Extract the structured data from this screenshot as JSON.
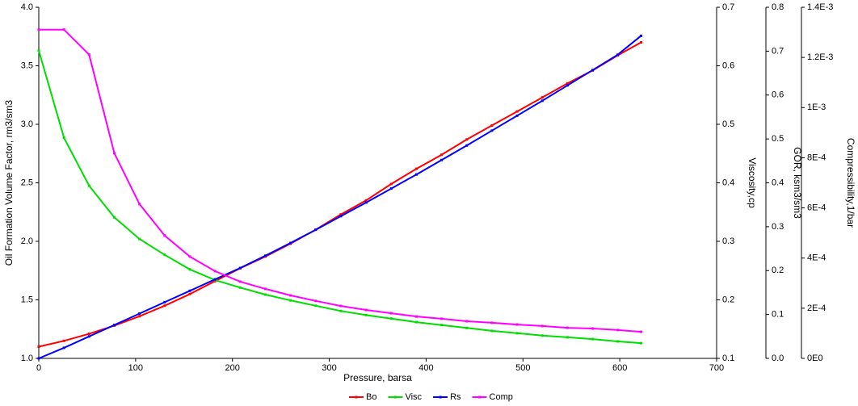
{
  "chart_data": {
    "type": "line",
    "xlabel": "Pressure, barsa",
    "ylabel": "Oil Formation Volume Factor, rm3/sm3",
    "y2label": "Viscosity,cp",
    "y3label": "GOR, ksm3/sm3",
    "y4label": "Compressibility,1/bar",
    "xlim": [
      0,
      700
    ],
    "xticks": [
      0,
      100,
      200,
      300,
      400,
      500,
      600,
      700
    ],
    "ylim": [
      1.0,
      4.0
    ],
    "yticks": [
      {
        "value": 1,
        "label": "1.0"
      },
      1.5,
      {
        "value": 2,
        "label": "2.0"
      },
      2.5,
      {
        "value": 3,
        "label": "3.0"
      },
      3.5,
      {
        "value": 4,
        "label": "4.0"
      }
    ],
    "y2lim": [
      0.1,
      0.7
    ],
    "y2ticks": [
      0.1,
      0.2,
      0.3,
      0.4,
      0.5,
      0.6,
      0.7
    ],
    "y3lim": [
      0.0,
      0.8
    ],
    "y3ticks": [
      {
        "value": 0,
        "label": "0.0"
      },
      0.1,
      0.2,
      0.3,
      0.4,
      0.5,
      0.6,
      0.7,
      0.8
    ],
    "y4lim": [
      0,
      0.0014
    ],
    "y4ticks": [
      {
        "value": 0,
        "label": "0E0"
      },
      {
        "value": 0.0002,
        "label": "2E-4"
      },
      {
        "value": 0.0004,
        "label": "4E-4"
      },
      {
        "value": 0.0006,
        "label": "6E-4"
      },
      {
        "value": 0.0008,
        "label": "8E-4"
      },
      {
        "value": 0.001,
        "label": "1E-3"
      },
      {
        "value": 0.0012,
        "label": "1.2E-3"
      },
      {
        "value": 0.0014,
        "label": "1.4E-3"
      }
    ],
    "x": [
      0,
      26,
      52,
      78,
      104,
      130,
      156,
      182,
      208,
      234,
      260,
      286,
      312,
      338,
      364,
      390,
      416,
      442,
      468,
      494,
      520,
      546,
      572,
      598,
      622
    ],
    "series": [
      {
        "name": "Bo",
        "color": "#ff0000",
        "axis": "y",
        "values": [
          1.1,
          1.15,
          1.21,
          1.28,
          1.36,
          1.45,
          1.55,
          1.66,
          1.77,
          1.87,
          1.98,
          2.1,
          2.23,
          2.35,
          2.49,
          2.62,
          2.74,
          2.87,
          2.99,
          3.11,
          3.23,
          3.35,
          3.46,
          3.59,
          3.7
        ]
      },
      {
        "name": "Visc",
        "color": "#00dd00",
        "axis": "y2",
        "values": [
          0.626,
          0.477,
          0.395,
          0.341,
          0.304,
          0.277,
          0.252,
          0.234,
          0.221,
          0.209,
          0.199,
          0.19,
          0.181,
          0.174,
          0.168,
          0.162,
          0.157,
          0.152,
          0.147,
          0.143,
          0.139,
          0.136,
          0.133,
          0.129,
          0.126
        ]
      },
      {
        "name": "Rs",
        "color": "#0000ff",
        "axis": "y3",
        "values": [
          0.0,
          0.024,
          0.05,
          0.076,
          0.102,
          0.128,
          0.154,
          0.18,
          0.206,
          0.234,
          0.263,
          0.293,
          0.324,
          0.355,
          0.387,
          0.419,
          0.452,
          0.485,
          0.519,
          0.553,
          0.587,
          0.622,
          0.657,
          0.692,
          0.735
        ]
      },
      {
        "name": "Comp",
        "color": "#ff00ff",
        "axis": "y4",
        "values": [
          0.001311,
          0.001311,
          0.001211,
          0.000818,
          0.000615,
          0.00049,
          0.000406,
          0.000348,
          0.000306,
          0.000277,
          0.000251,
          0.000229,
          0.000209,
          0.000193,
          0.00018,
          0.000167,
          0.000158,
          0.000148,
          0.000142,
          0.000135,
          0.000129,
          0.000122,
          0.000119,
          0.000113,
          0.000106
        ]
      }
    ]
  }
}
